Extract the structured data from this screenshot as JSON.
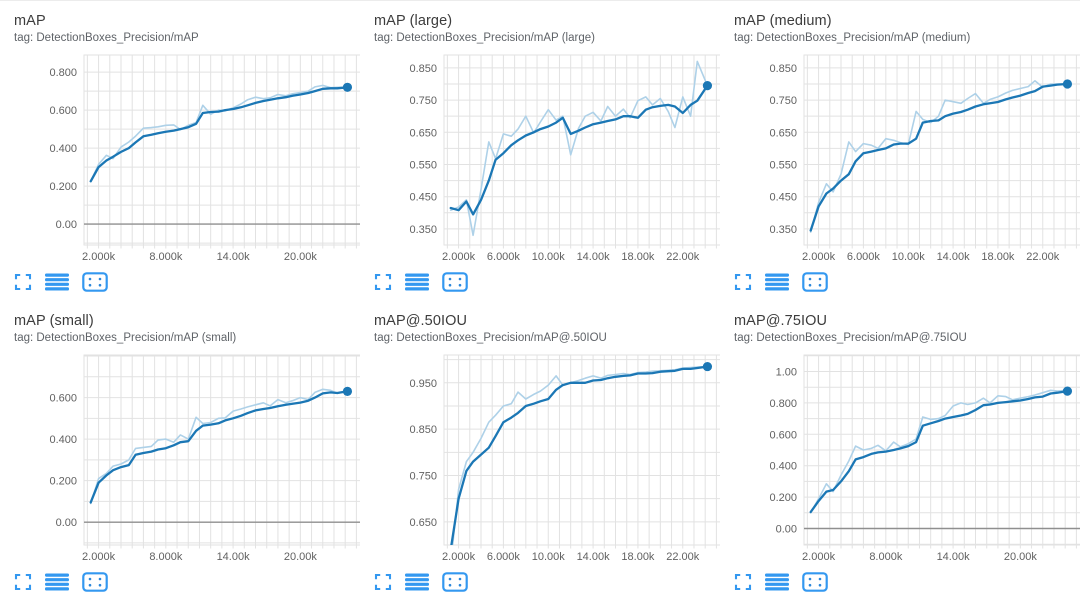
{
  "app": {
    "name": "TensorBoard scalar dashboard"
  },
  "colors": {
    "smoothed_line": "#1b77b5",
    "raw_line": "#aed1e8",
    "end_dot": "#1b77b5",
    "grid_line": "#e2e2e2",
    "zero_line": "#8f8f8f",
    "tick_text": "#616161",
    "title_text": "#3c3c3c",
    "tag_text": "#5f6368",
    "icon_blue": "#3398f0"
  },
  "footer": {
    "fullscreen_icon": "fullscreen-expand",
    "lines_icon": "stacked-lines",
    "fit_icon": "fit-domain-to-data"
  },
  "chart_data": [
    {
      "type": "line",
      "title": "mAP",
      "tag": "tag: DetectionBoxes_Precision/mAP",
      "x_domain": [
        700,
        25500
      ],
      "y_domain": [
        -0.11,
        0.89
      ],
      "x_minor_step": 1000,
      "y_minor_step": 0.1,
      "zero_line": true,
      "x_ticks": [
        {
          "v": 2000,
          "label": "2.000k"
        },
        {
          "v": 8000,
          "label": "8.000k"
        },
        {
          "v": 14000,
          "label": "14.00k"
        },
        {
          "v": 20000,
          "label": "20.00k"
        }
      ],
      "y_ticks": [
        {
          "v": 0.8,
          "label": "0.800"
        },
        {
          "v": 0.6,
          "label": "0.600"
        },
        {
          "v": 0.4,
          "label": "0.400"
        },
        {
          "v": 0.2,
          "label": "0.200"
        },
        {
          "v": 0,
          "label": "0.00"
        }
      ],
      "x": [
        1300,
        2000,
        2700,
        3300,
        4000,
        4700,
        5300,
        6000,
        6700,
        7300,
        8000,
        8700,
        9300,
        10000,
        10700,
        11300,
        12000,
        12700,
        13300,
        14000,
        14700,
        15300,
        16000,
        16700,
        17300,
        18000,
        18700,
        19300,
        20000,
        20700,
        21300,
        22000,
        22700,
        23300,
        24200
      ],
      "series": [
        {
          "name": "raw",
          "values": [
            0.225,
            0.315,
            0.362,
            0.345,
            0.405,
            0.432,
            0.463,
            0.505,
            0.508,
            0.512,
            0.52,
            0.522,
            0.498,
            0.52,
            0.535,
            0.625,
            0.578,
            0.6,
            0.596,
            0.612,
            0.632,
            0.655,
            0.668,
            0.66,
            0.665,
            0.682,
            0.675,
            0.686,
            0.692,
            0.7,
            0.722,
            0.73,
            0.718,
            0.72,
            0.72
          ]
        },
        {
          "name": "smoothed",
          "values": [
            0.225,
            0.3,
            0.335,
            0.355,
            0.38,
            0.4,
            0.43,
            0.462,
            0.47,
            0.478,
            0.486,
            0.492,
            0.5,
            0.51,
            0.528,
            0.585,
            0.59,
            0.592,
            0.6,
            0.606,
            0.615,
            0.625,
            0.638,
            0.648,
            0.655,
            0.662,
            0.668,
            0.675,
            0.682,
            0.69,
            0.7,
            0.712,
            0.715,
            0.715,
            0.72
          ]
        }
      ]
    },
    {
      "type": "line",
      "title": "mAP (large)",
      "tag": "tag: DetectionBoxes_Precision/mAP (large)",
      "x_domain": [
        700,
        25500
      ],
      "y_domain": [
        0.3,
        0.89
      ],
      "x_minor_step": 1000,
      "y_minor_step": 0.05,
      "zero_line": false,
      "x_ticks": [
        {
          "v": 2000,
          "label": "2.000k"
        },
        {
          "v": 6000,
          "label": "6.000k"
        },
        {
          "v": 10000,
          "label": "10.00k"
        },
        {
          "v": 14000,
          "label": "14.00k"
        },
        {
          "v": 18000,
          "label": "18.00k"
        },
        {
          "v": 22000,
          "label": "22.00k"
        }
      ],
      "y_ticks": [
        {
          "v": 0.85,
          "label": "0.850"
        },
        {
          "v": 0.75,
          "label": "0.750"
        },
        {
          "v": 0.65,
          "label": "0.650"
        },
        {
          "v": 0.55,
          "label": "0.550"
        },
        {
          "v": 0.45,
          "label": "0.450"
        },
        {
          "v": 0.35,
          "label": "0.350"
        }
      ],
      "x": [
        1300,
        2000,
        2700,
        3300,
        4000,
        4700,
        5300,
        6000,
        6700,
        7300,
        8000,
        8700,
        9300,
        10000,
        10700,
        11300,
        12000,
        12700,
        13300,
        14000,
        14700,
        15300,
        16000,
        16700,
        17300,
        18000,
        18700,
        19300,
        20000,
        20700,
        21300,
        22000,
        22700,
        23300,
        24200
      ],
      "series": [
        {
          "name": "raw",
          "values": [
            0.408,
            0.418,
            0.44,
            0.33,
            0.472,
            0.62,
            0.568,
            0.645,
            0.638,
            0.66,
            0.7,
            0.648,
            0.682,
            0.72,
            0.688,
            0.7,
            0.58,
            0.662,
            0.7,
            0.712,
            0.685,
            0.73,
            0.7,
            0.722,
            0.695,
            0.748,
            0.76,
            0.735,
            0.755,
            0.715,
            0.665,
            0.76,
            0.7,
            0.87,
            0.795
          ]
        },
        {
          "name": "smoothed",
          "values": [
            0.415,
            0.408,
            0.435,
            0.395,
            0.44,
            0.5,
            0.565,
            0.585,
            0.61,
            0.625,
            0.64,
            0.65,
            0.66,
            0.668,
            0.68,
            0.695,
            0.645,
            0.655,
            0.665,
            0.675,
            0.68,
            0.685,
            0.69,
            0.7,
            0.7,
            0.695,
            0.72,
            0.728,
            0.732,
            0.735,
            0.73,
            0.71,
            0.735,
            0.748,
            0.795
          ]
        }
      ]
    },
    {
      "type": "line",
      "title": "mAP (medium)",
      "tag": "tag: DetectionBoxes_Precision/mAP (medium)",
      "x_domain": [
        700,
        25500
      ],
      "y_domain": [
        0.3,
        0.89
      ],
      "x_minor_step": 1000,
      "y_minor_step": 0.05,
      "zero_line": false,
      "x_ticks": [
        {
          "v": 2000,
          "label": "2.000k"
        },
        {
          "v": 6000,
          "label": "6.000k"
        },
        {
          "v": 10000,
          "label": "10.00k"
        },
        {
          "v": 14000,
          "label": "14.00k"
        },
        {
          "v": 18000,
          "label": "18.00k"
        },
        {
          "v": 22000,
          "label": "22.00k"
        }
      ],
      "y_ticks": [
        {
          "v": 0.85,
          "label": "0.850"
        },
        {
          "v": 0.75,
          "label": "0.750"
        },
        {
          "v": 0.65,
          "label": "0.650"
        },
        {
          "v": 0.55,
          "label": "0.550"
        },
        {
          "v": 0.45,
          "label": "0.450"
        },
        {
          "v": 0.35,
          "label": "0.350"
        }
      ],
      "x": [
        1300,
        2000,
        2700,
        3300,
        4000,
        4700,
        5300,
        6000,
        6700,
        7300,
        8000,
        8700,
        9300,
        10000,
        10700,
        11300,
        12000,
        12700,
        13300,
        14000,
        14700,
        15300,
        16000,
        16700,
        17300,
        18000,
        18700,
        19300,
        20000,
        20700,
        21300,
        22000,
        22700,
        23300,
        24200
      ],
      "series": [
        {
          "name": "raw",
          "values": [
            0.34,
            0.432,
            0.49,
            0.465,
            0.52,
            0.62,
            0.59,
            0.615,
            0.61,
            0.6,
            0.63,
            0.625,
            0.618,
            0.612,
            0.715,
            0.69,
            0.68,
            0.7,
            0.75,
            0.745,
            0.74,
            0.755,
            0.77,
            0.74,
            0.752,
            0.76,
            0.772,
            0.78,
            0.786,
            0.792,
            0.81,
            0.79,
            0.8,
            0.8,
            0.8
          ]
        },
        {
          "name": "smoothed",
          "values": [
            0.345,
            0.42,
            0.46,
            0.475,
            0.5,
            0.52,
            0.56,
            0.585,
            0.59,
            0.595,
            0.6,
            0.612,
            0.615,
            0.615,
            0.63,
            0.68,
            0.685,
            0.687,
            0.7,
            0.708,
            0.713,
            0.72,
            0.73,
            0.737,
            0.74,
            0.744,
            0.752,
            0.758,
            0.764,
            0.772,
            0.778,
            0.792,
            0.795,
            0.798,
            0.8
          ]
        }
      ]
    },
    {
      "type": "line",
      "title": "mAP (small)",
      "tag": "tag: DetectionBoxes_Precision/mAP (small)",
      "x_domain": [
        700,
        25500
      ],
      "y_domain": [
        -0.11,
        0.805
      ],
      "x_minor_step": 1000,
      "y_minor_step": 0.1,
      "zero_line": true,
      "x_ticks": [
        {
          "v": 2000,
          "label": "2.000k"
        },
        {
          "v": 8000,
          "label": "8.000k"
        },
        {
          "v": 14000,
          "label": "14.00k"
        },
        {
          "v": 20000,
          "label": "20.00k"
        }
      ],
      "y_ticks": [
        {
          "v": 0.6,
          "label": "0.600"
        },
        {
          "v": 0.4,
          "label": "0.400"
        },
        {
          "v": 0.2,
          "label": "0.200"
        },
        {
          "v": 0,
          "label": "0.00"
        }
      ],
      "x": [
        1300,
        2000,
        2700,
        3300,
        4000,
        4700,
        5300,
        6000,
        6700,
        7300,
        8000,
        8700,
        9300,
        10000,
        10700,
        11300,
        12000,
        12700,
        13300,
        14000,
        14700,
        15300,
        16000,
        16700,
        17300,
        18000,
        18700,
        19300,
        20000,
        20700,
        21300,
        22000,
        22700,
        23300,
        24200
      ],
      "series": [
        {
          "name": "raw",
          "values": [
            0.09,
            0.21,
            0.235,
            0.27,
            0.28,
            0.3,
            0.355,
            0.36,
            0.365,
            0.395,
            0.4,
            0.385,
            0.42,
            0.4,
            0.505,
            0.475,
            0.48,
            0.5,
            0.502,
            0.535,
            0.545,
            0.555,
            0.565,
            0.575,
            0.56,
            0.59,
            0.575,
            0.585,
            0.6,
            0.59,
            0.625,
            0.64,
            0.635,
            0.62,
            0.63
          ]
        },
        {
          "name": "smoothed",
          "values": [
            0.095,
            0.19,
            0.225,
            0.25,
            0.265,
            0.275,
            0.325,
            0.333,
            0.34,
            0.35,
            0.356,
            0.37,
            0.385,
            0.39,
            0.44,
            0.465,
            0.47,
            0.476,
            0.49,
            0.5,
            0.512,
            0.525,
            0.538,
            0.545,
            0.55,
            0.558,
            0.565,
            0.57,
            0.576,
            0.585,
            0.6,
            0.62,
            0.625,
            0.622,
            0.63
          ]
        }
      ]
    },
    {
      "type": "line",
      "title": "mAP@.50IOU",
      "tag": "tag: DetectionBoxes_Precision/mAP@.50IOU",
      "x_domain": [
        700,
        25500
      ],
      "y_domain": [
        0.6,
        1.01
      ],
      "x_minor_step": 1000,
      "y_minor_step": 0.05,
      "zero_line": false,
      "x_ticks": [
        {
          "v": 2000,
          "label": "2.000k"
        },
        {
          "v": 6000,
          "label": "6.000k"
        },
        {
          "v": 10000,
          "label": "10.00k"
        },
        {
          "v": 14000,
          "label": "14.00k"
        },
        {
          "v": 18000,
          "label": "18.00k"
        },
        {
          "v": 22000,
          "label": "22.00k"
        }
      ],
      "y_ticks": [
        {
          "v": 0.95,
          "label": "0.950"
        },
        {
          "v": 0.85,
          "label": "0.850"
        },
        {
          "v": 0.75,
          "label": "0.750"
        },
        {
          "v": 0.65,
          "label": "0.650"
        }
      ],
      "x": [
        1300,
        2000,
        2700,
        3300,
        4000,
        4700,
        5300,
        6000,
        6700,
        7300,
        8000,
        8700,
        9300,
        10000,
        10700,
        11300,
        12000,
        12700,
        13300,
        14000,
        14700,
        15300,
        16000,
        16700,
        17300,
        18000,
        18700,
        19300,
        20000,
        20700,
        21300,
        22000,
        22700,
        23300,
        24200
      ],
      "series": [
        {
          "name": "raw",
          "values": [
            0.56,
            0.72,
            0.78,
            0.8,
            0.83,
            0.865,
            0.88,
            0.9,
            0.905,
            0.93,
            0.915,
            0.925,
            0.932,
            0.945,
            0.965,
            0.945,
            0.95,
            0.955,
            0.96,
            0.965,
            0.96,
            0.966,
            0.968,
            0.97,
            0.968,
            0.972,
            0.973,
            0.975,
            0.976,
            0.977,
            0.978,
            0.982,
            0.983,
            0.984,
            0.985
          ]
        },
        {
          "name": "smoothed",
          "values": [
            0.59,
            0.7,
            0.76,
            0.78,
            0.795,
            0.81,
            0.835,
            0.865,
            0.875,
            0.885,
            0.9,
            0.905,
            0.91,
            0.915,
            0.935,
            0.945,
            0.95,
            0.95,
            0.95,
            0.955,
            0.956,
            0.96,
            0.963,
            0.965,
            0.966,
            0.97,
            0.97,
            0.971,
            0.974,
            0.975,
            0.976,
            0.98,
            0.98,
            0.982,
            0.985
          ]
        }
      ]
    },
    {
      "type": "line",
      "title": "mAP@.75IOU",
      "tag": "tag: DetectionBoxes_Precision/mAP@.75IOU",
      "x_domain": [
        700,
        25500
      ],
      "y_domain": [
        -0.105,
        1.105
      ],
      "x_minor_step": 1000,
      "y_minor_step": 0.1,
      "zero_line": true,
      "x_ticks": [
        {
          "v": 2000,
          "label": "2.000k"
        },
        {
          "v": 8000,
          "label": "8.000k"
        },
        {
          "v": 14000,
          "label": "14.00k"
        },
        {
          "v": 20000,
          "label": "20.00k"
        }
      ],
      "y_ticks": [
        {
          "v": 1.0,
          "label": "1.00"
        },
        {
          "v": 0.8,
          "label": "0.800"
        },
        {
          "v": 0.6,
          "label": "0.600"
        },
        {
          "v": 0.4,
          "label": "0.400"
        },
        {
          "v": 0.2,
          "label": "0.200"
        },
        {
          "v": 0,
          "label": "0.00"
        }
      ],
      "x": [
        1300,
        2000,
        2700,
        3300,
        4000,
        4700,
        5300,
        6000,
        6700,
        7300,
        8000,
        8700,
        9300,
        10000,
        10700,
        11300,
        12000,
        12700,
        13300,
        14000,
        14700,
        15300,
        16000,
        16700,
        17300,
        18000,
        18700,
        19300,
        20000,
        20700,
        21300,
        22000,
        22700,
        23300,
        24200
      ],
      "series": [
        {
          "name": "raw",
          "values": [
            0.1,
            0.19,
            0.285,
            0.235,
            0.34,
            0.43,
            0.525,
            0.5,
            0.51,
            0.53,
            0.495,
            0.55,
            0.52,
            0.54,
            0.57,
            0.71,
            0.695,
            0.7,
            0.72,
            0.78,
            0.8,
            0.79,
            0.8,
            0.83,
            0.8,
            0.845,
            0.84,
            0.82,
            0.83,
            0.84,
            0.85,
            0.865,
            0.88,
            0.875,
            0.88
          ]
        },
        {
          "name": "smoothed",
          "values": [
            0.105,
            0.175,
            0.235,
            0.245,
            0.3,
            0.365,
            0.44,
            0.455,
            0.475,
            0.485,
            0.49,
            0.5,
            0.51,
            0.525,
            0.55,
            0.655,
            0.67,
            0.685,
            0.7,
            0.71,
            0.72,
            0.73,
            0.755,
            0.785,
            0.79,
            0.8,
            0.805,
            0.81,
            0.815,
            0.825,
            0.835,
            0.84,
            0.86,
            0.865,
            0.875
          ]
        }
      ]
    }
  ]
}
